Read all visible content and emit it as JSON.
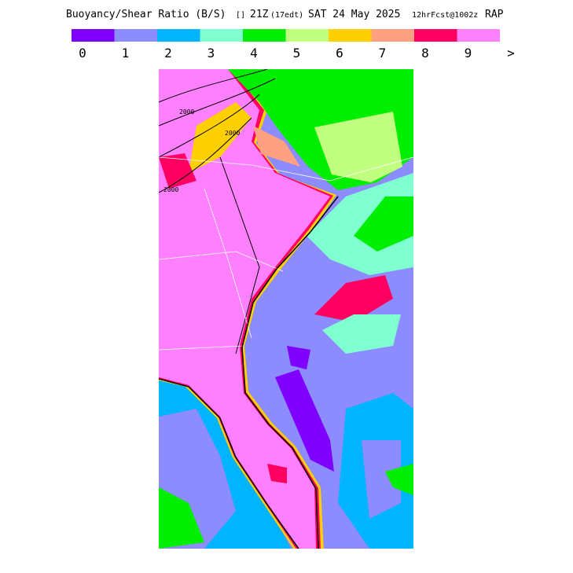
{
  "header": {
    "title": "Buoyancy/Shear Ratio (B/S)",
    "symbol": "[]",
    "valid_time": "21Z",
    "local_time": "(17edt)",
    "date": "SAT 24 May 2025",
    "forecast": "12hrFcst@1002z",
    "model": "RAP"
  },
  "legend": {
    "colors": [
      "#8000ff",
      "#8c8cff",
      "#00b4ff",
      "#80ffd0",
      "#00ee00",
      "#c0ff80",
      "#ffd000",
      "#ffa080",
      "#ff0060",
      "#ff80ff"
    ],
    "labels": [
      "0",
      "1",
      "2",
      "3",
      "4",
      "5",
      "6",
      "7",
      "8",
      "9",
      ">"
    ]
  },
  "map": {
    "contour_labels": [
      "2000",
      "2000",
      "2000"
    ]
  }
}
